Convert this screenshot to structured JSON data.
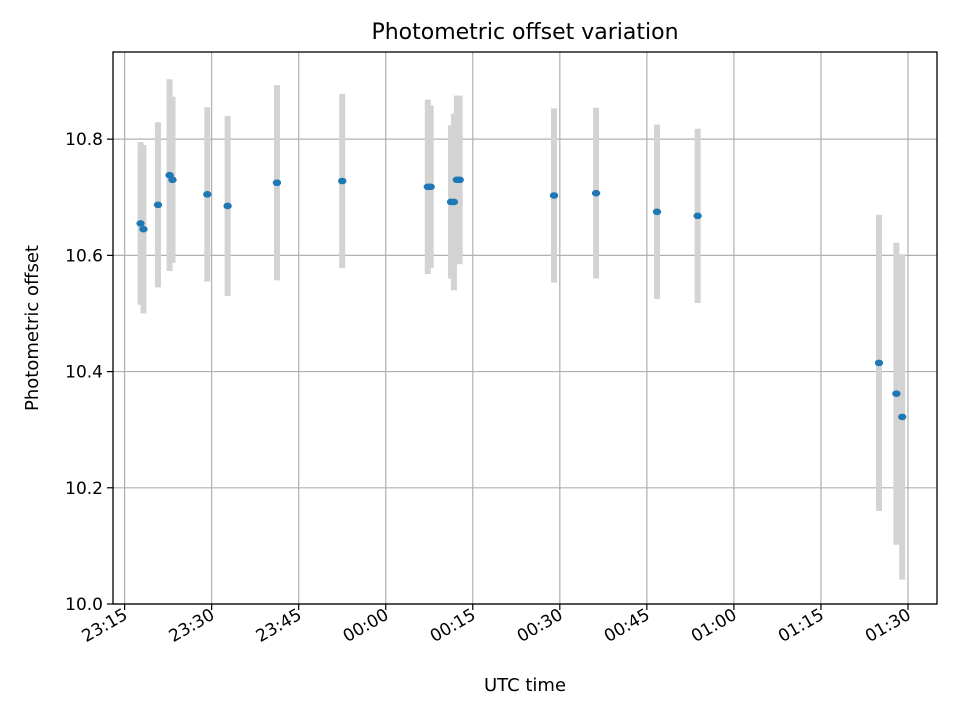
{
  "chart_data": {
    "type": "scatter",
    "title": "Photometric offset variation",
    "xlabel": "UTC time",
    "ylabel": "Photometric offset",
    "grid": true,
    "ylim": [
      10.0,
      10.95
    ],
    "xlim": [
      "23:13",
      "01:35"
    ],
    "y_ticks": [
      "10.0",
      "10.2",
      "10.4",
      "10.6",
      "10.8"
    ],
    "x_ticks": [
      "23:15",
      "23:30",
      "23:45",
      "00:00",
      "00:15",
      "00:30",
      "00:45",
      "01:00",
      "01:15",
      "01:30"
    ],
    "errorbar_color": "#d3d3d3",
    "marker_color": "#1f77b4",
    "series": [
      {
        "points": [
          {
            "x": "23:17:45",
            "y": 10.655,
            "err": 0.14
          },
          {
            "x": "23:18:15",
            "y": 10.645,
            "err": 0.145
          },
          {
            "x": "23:20:45",
            "y": 10.687,
            "err": 0.142
          },
          {
            "x": "23:22:45",
            "y": 10.738,
            "err": 0.165
          },
          {
            "x": "23:23:15",
            "y": 10.73,
            "err": 0.143
          },
          {
            "x": "23:29:15",
            "y": 10.705,
            "err": 0.15
          },
          {
            "x": "23:32:45",
            "y": 10.685,
            "err": 0.155
          },
          {
            "x": "23:41:15",
            "y": 10.725,
            "err": 0.168
          },
          {
            "x": "23:52:30",
            "y": 10.728,
            "err": 0.15
          },
          {
            "x": "00:07:15",
            "y": 10.718,
            "err": 0.15
          },
          {
            "x": "00:07:45",
            "y": 10.718,
            "err": 0.14
          },
          {
            "x": "00:11:15",
            "y": 10.692,
            "err": 0.132
          },
          {
            "x": "00:11:45",
            "y": 10.692,
            "err": 0.152
          },
          {
            "x": "00:12:15",
            "y": 10.73,
            "err": 0.145
          },
          {
            "x": "00:12:45",
            "y": 10.73,
            "err": 0.145
          },
          {
            "x": "00:29:00",
            "y": 10.703,
            "err": 0.15
          },
          {
            "x": "00:36:15",
            "y": 10.707,
            "err": 0.147
          },
          {
            "x": "00:46:45",
            "y": 10.675,
            "err": 0.15
          },
          {
            "x": "00:53:45",
            "y": 10.668,
            "err": 0.15
          },
          {
            "x": "01:25:00",
            "y": 10.415,
            "err": 0.255
          },
          {
            "x": "01:28:00",
            "y": 10.362,
            "err": 0.26
          },
          {
            "x": "01:29:00",
            "y": 10.322,
            "err": 0.28
          }
        ]
      }
    ]
  }
}
